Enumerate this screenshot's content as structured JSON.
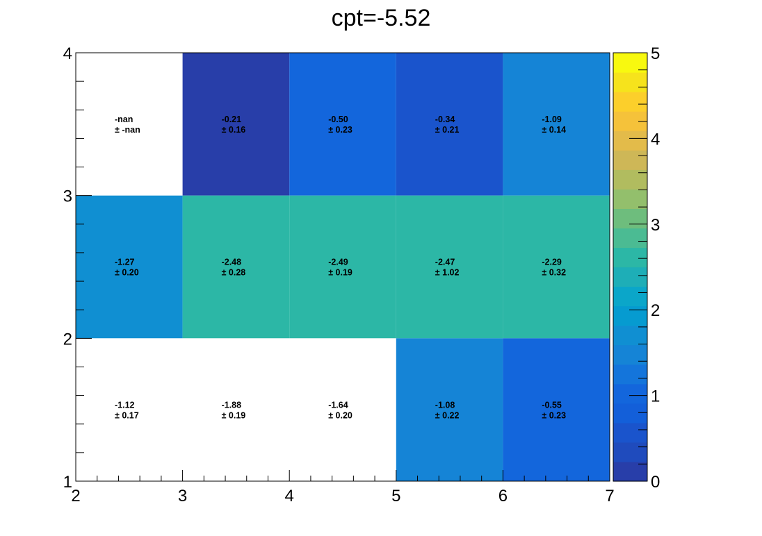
{
  "chart_data": {
    "type": "heatmap",
    "title": "cpt=-5.52",
    "xlabel": "",
    "ylabel": "",
    "xlim": [
      2,
      7
    ],
    "ylim": [
      1,
      4
    ],
    "zlim": [
      0,
      5
    ],
    "x_ticks": [
      "2",
      "3",
      "4",
      "5",
      "6",
      "7"
    ],
    "y_ticks": [
      "1",
      "2",
      "3",
      "4"
    ],
    "colorbar_ticks": [
      "0",
      "1",
      "2",
      "3",
      "4",
      "5"
    ],
    "x_edges": [
      2,
      3,
      4,
      5,
      6,
      7
    ],
    "y_edges": [
      1,
      2,
      3,
      4
    ],
    "cells": [
      {
        "x": 2,
        "y": 3,
        "value": "-nan",
        "error": "± -nan",
        "color": "#ffffff"
      },
      {
        "x": 3,
        "y": 3,
        "value": "-0.21",
        "error": "± 0.16",
        "color": "#283ea9"
      },
      {
        "x": 4,
        "y": 3,
        "value": "-0.50",
        "error": "± 0.23",
        "color": "#1366dc"
      },
      {
        "x": 5,
        "y": 3,
        "value": "-0.34",
        "error": "± 0.21",
        "color": "#1a54cc"
      },
      {
        "x": 6,
        "y": 3,
        "value": "-1.09",
        "error": "± 0.14",
        "color": "#1584d6"
      },
      {
        "x": 2,
        "y": 2,
        "value": "-1.27",
        "error": "± 0.20",
        "color": "#108fd2"
      },
      {
        "x": 3,
        "y": 2,
        "value": "-2.48",
        "error": "± 0.28",
        "color": "#2cb7a6"
      },
      {
        "x": 4,
        "y": 2,
        "value": "-2.49",
        "error": "± 0.19",
        "color": "#2cb7a6"
      },
      {
        "x": 5,
        "y": 2,
        "value": "-2.47",
        "error": "± 1.02",
        "color": "#2cb7a6"
      },
      {
        "x": 6,
        "y": 2,
        "value": "-2.29",
        "error": "± 0.32",
        "color": "#2cb7a6"
      },
      {
        "x": 2,
        "y": 1,
        "value": "-1.12",
        "error": "± 0.17",
        "color": "#ffffff"
      },
      {
        "x": 3,
        "y": 1,
        "value": "-1.88",
        "error": "± 0.19",
        "color": "#ffffff"
      },
      {
        "x": 4,
        "y": 1,
        "value": "-1.64",
        "error": "± 0.20",
        "color": "#ffffff"
      },
      {
        "x": 5,
        "y": 1,
        "value": "-1.08",
        "error": "± 0.22",
        "color": "#1584d6"
      },
      {
        "x": 6,
        "y": 1,
        "value": "-0.55",
        "error": "± 0.23",
        "color": "#1366dc"
      }
    ],
    "palette": [
      "#283ea9",
      "#1f4bbd",
      "#1a54cc",
      "#135fd9",
      "#1366dc",
      "#1475db",
      "#1584d6",
      "#108fd2",
      "#069bd0",
      "#0ba6c9",
      "#1eaeb7",
      "#2cb7a6",
      "#4bbb93",
      "#6ebd7d",
      "#93bf6c",
      "#b1bc5f",
      "#ceb757",
      "#e3bb4a",
      "#f5c23a",
      "#fccf2b",
      "#f6e31c",
      "#f8f90f"
    ]
  }
}
